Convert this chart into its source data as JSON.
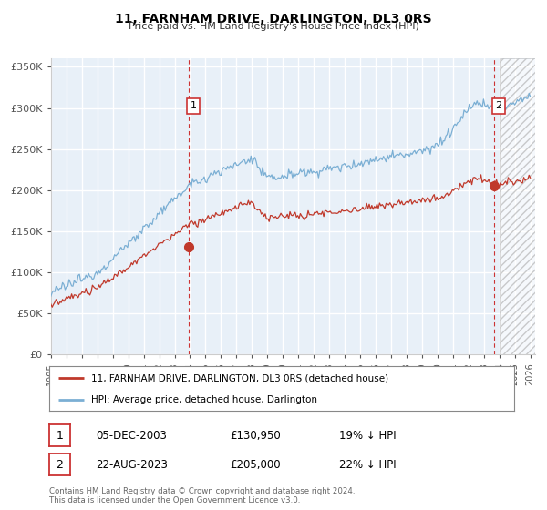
{
  "title": "11, FARNHAM DRIVE, DARLINGTON, DL3 0RS",
  "subtitle": "Price paid vs. HM Land Registry's House Price Index (HPI)",
  "ylim": [
    0,
    360000
  ],
  "yticks": [
    0,
    50000,
    100000,
    150000,
    200000,
    250000,
    300000,
    350000
  ],
  "ytick_labels": [
    "£0",
    "£50K",
    "£100K",
    "£150K",
    "£200K",
    "£250K",
    "£300K",
    "£350K"
  ],
  "xlim_start": 1995.0,
  "xlim_end": 2026.3,
  "hatch_start": 2024.0,
  "hpi_color": "#7BAFD4",
  "price_color": "#C0392B",
  "marker1_date": 2003.92,
  "marker1_price": 130950,
  "marker2_date": 2023.64,
  "marker2_price": 205000,
  "legend_entry1": "11, FARNHAM DRIVE, DARLINGTON, DL3 0RS (detached house)",
  "legend_entry2": "HPI: Average price, detached house, Darlington",
  "table_row1": [
    "1",
    "05-DEC-2003",
    "£130,950",
    "19% ↓ HPI"
  ],
  "table_row2": [
    "2",
    "22-AUG-2023",
    "£205,000",
    "22% ↓ HPI"
  ],
  "footer1": "Contains HM Land Registry data © Crown copyright and database right 2024.",
  "footer2": "This data is licensed under the Open Government Licence v3.0.",
  "background_color": "#ffffff",
  "plot_bg_color": "#e8f0f8",
  "grid_color": "#ffffff",
  "vline_color": "#cc3333"
}
